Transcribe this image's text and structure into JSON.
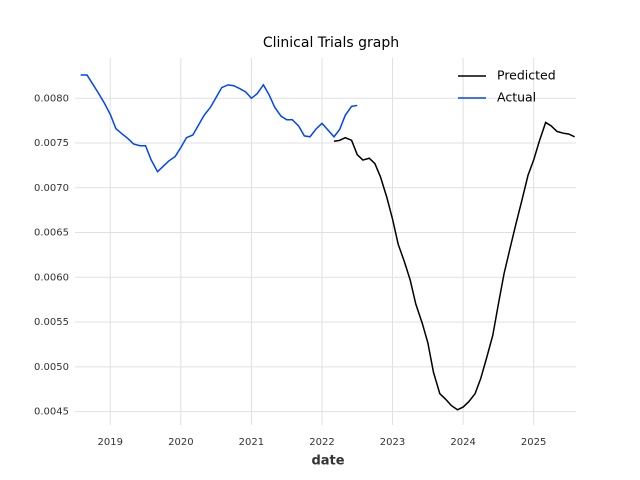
{
  "chart_data": {
    "type": "line",
    "title": "Clinical Trials graph",
    "x_label": "date",
    "xlim": [
      2018.5,
      2025.6
    ],
    "xticks": [
      2019,
      2020,
      2021,
      2022,
      2023,
      2024,
      2025
    ],
    "ylim": [
      0.00435,
      0.00845
    ],
    "yticks": [
      0.0045,
      {
        "value": 0.005,
        "label": "0.0050"
      },
      0.0055,
      {
        "value": 0.006,
        "label": "0.0060"
      },
      0.0065,
      {
        "value": 0.007,
        "label": "0.0070"
      },
      0.0075,
      {
        "value": 0.008,
        "label": "0.0080"
      }
    ],
    "grid": true,
    "legend": "upper right",
    "series": [
      {
        "name": "Predicted",
        "color": "#000000",
        "x": [
          2022.17,
          2022.25,
          2022.33,
          2022.42,
          2022.5,
          2022.58,
          2022.67,
          2022.75,
          2022.83,
          2022.92,
          2023,
          2023.08,
          2023.17,
          2023.25,
          2023.33,
          2023.42,
          2023.5,
          2023.58,
          2023.67,
          2023.75,
          2023.83,
          2023.92,
          2024,
          2024.08,
          2024.17,
          2024.25,
          2024.33,
          2024.42,
          2024.5,
          2024.58,
          2024.67,
          2024.75,
          2024.83,
          2024.92,
          2025,
          2025.08,
          2025.17,
          2025.25,
          2025.33,
          2025.42,
          2025.5,
          2025.58
        ],
        "values": [
          0.00752,
          0.00753,
          0.00756,
          0.00753,
          0.00737,
          0.00731,
          0.00733,
          0.00727,
          0.00712,
          0.00689,
          0.00665,
          0.00637,
          0.00617,
          0.00597,
          0.0057,
          0.00549,
          0.00527,
          0.00494,
          0.0047,
          0.00464,
          0.00457,
          0.00452,
          0.00455,
          0.00461,
          0.0047,
          0.00487,
          0.00509,
          0.00535,
          0.0057,
          0.00604,
          0.00634,
          0.0066,
          0.00685,
          0.00714,
          0.00731,
          0.00752,
          0.00773,
          0.00769,
          0.00763,
          0.00761,
          0.0076,
          0.00757
        ]
      },
      {
        "name": "Actual",
        "color": "#0044ff",
        "x": [
          2018.58,
          2018.67,
          2018.75,
          2018.83,
          2018.92,
          2019,
          2019.08,
          2019.17,
          2019.25,
          2019.33,
          2019.42,
          2019.5,
          2019.58,
          2019.67,
          2019.75,
          2019.83,
          2019.92,
          2020,
          2020.08,
          2020.17,
          2020.25,
          2020.33,
          2020.42,
          2020.5,
          2020.58,
          2020.67,
          2020.75,
          2020.83,
          2020.92,
          2021,
          2021.08,
          2021.17,
          2021.25,
          2021.33,
          2021.42,
          2021.5,
          2021.58,
          2021.67,
          2021.75,
          2021.83,
          2021.92,
          2022,
          2022.08,
          2022.17,
          2022.25,
          2022.33,
          2022.42,
          2022.5
        ],
        "values": [
          0.00826,
          0.00826,
          0.00816,
          0.00806,
          0.00794,
          0.00782,
          0.00766,
          0.0076,
          0.00755,
          0.00749,
          0.00747,
          0.00747,
          0.00731,
          0.00718,
          0.00724,
          0.0073,
          0.00735,
          0.00745,
          0.00756,
          0.00759,
          0.0077,
          0.00781,
          0.0079,
          0.00801,
          0.00812,
          0.00815,
          0.00814,
          0.00811,
          0.00807,
          0.008,
          0.00805,
          0.00815,
          0.00804,
          0.0079,
          0.0078,
          0.00776,
          0.00776,
          0.00769,
          0.00758,
          0.00757,
          0.00766,
          0.00772,
          0.00765,
          0.00757,
          0.00765,
          0.00781,
          0.00791,
          0.00792
        ]
      }
    ]
  }
}
